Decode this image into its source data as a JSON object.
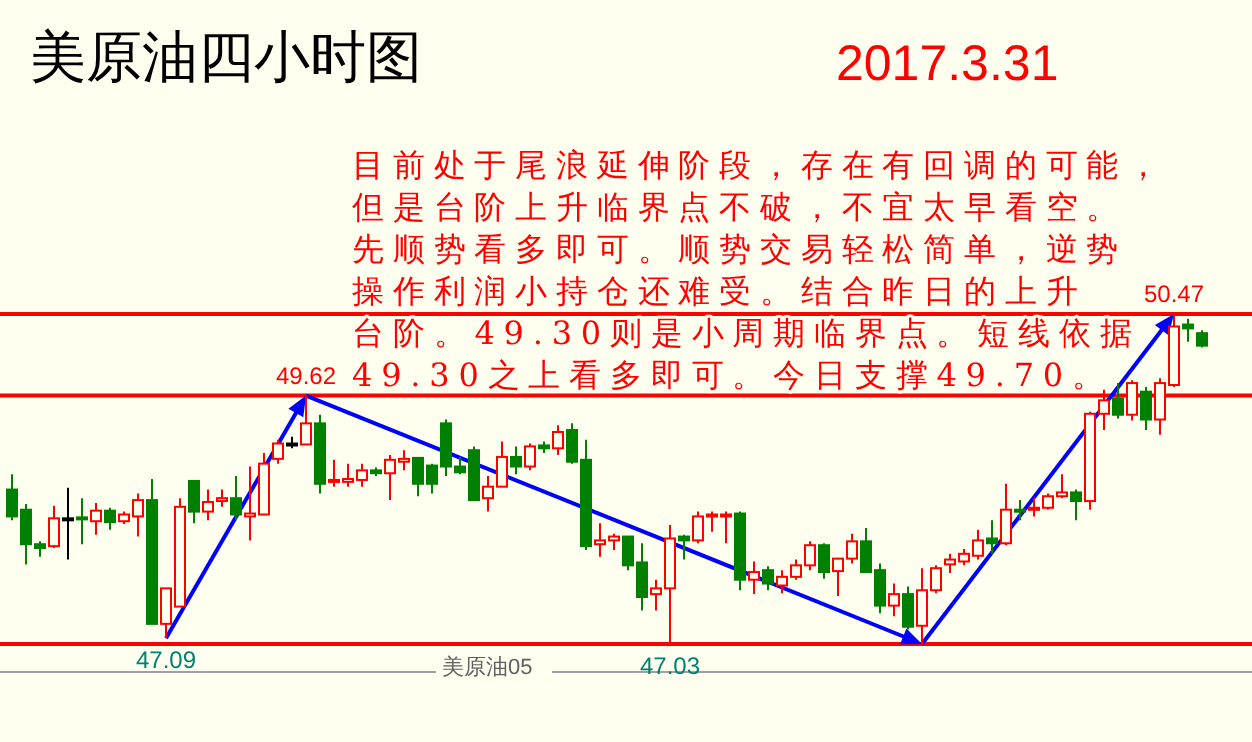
{
  "chart_data": {
    "type": "candlestick",
    "title": "美原油四小时图",
    "subtitle": "2017.3.31",
    "categories": [
      null,
      null,
      null,
      null,
      null,
      null,
      null,
      null,
      null,
      null,
      null,
      null,
      null,
      null,
      null,
      null,
      null,
      null,
      null,
      null,
      null,
      null,
      null,
      null,
      null,
      null,
      null,
      null,
      null,
      null,
      null,
      null,
      null,
      null,
      null,
      null,
      null,
      null,
      null,
      null,
      null,
      null,
      null,
      null,
      null,
      null,
      null,
      null,
      null,
      null,
      null,
      null,
      null,
      null,
      null,
      null,
      null,
      null,
      null,
      null,
      null,
      null,
      null,
      null,
      null,
      null,
      null,
      null,
      null,
      null,
      null,
      null,
      null,
      null,
      null,
      null,
      null,
      null,
      null,
      null,
      null,
      null,
      null,
      null,
      null,
      null
    ],
    "ohlc": [
      [
        48.64,
        48.8,
        48.32,
        48.36
      ],
      [
        48.43,
        48.49,
        47.86,
        48.07
      ],
      [
        48.07,
        48.1,
        47.94,
        48.03
      ],
      [
        48.05,
        48.47,
        48.03,
        48.34
      ],
      [
        48.34,
        48.66,
        47.91,
        48.34
      ],
      [
        48.35,
        48.55,
        48.07,
        48.33
      ],
      [
        48.31,
        48.5,
        48.17,
        48.42
      ],
      [
        48.42,
        48.45,
        48.22,
        48.3
      ],
      [
        48.31,
        48.41,
        48.28,
        48.38
      ],
      [
        48.36,
        48.6,
        48.15,
        48.53
      ],
      [
        48.53,
        48.75,
        47.24,
        47.24
      ],
      [
        47.24,
        47.61,
        47.09,
        47.61
      ],
      [
        47.42,
        48.55,
        47.42,
        48.46
      ],
      [
        48.73,
        48.74,
        48.29,
        48.41
      ],
      [
        48.41,
        48.64,
        48.32,
        48.51
      ],
      [
        48.52,
        48.64,
        48.46,
        48.55
      ],
      [
        48.55,
        48.78,
        48.32,
        48.38
      ],
      [
        48.36,
        48.88,
        48.11,
        48.39
      ],
      [
        48.38,
        49.02,
        48.38,
        48.91
      ],
      [
        48.96,
        49.16,
        48.91,
        49.12
      ],
      [
        49.12,
        49.19,
        49.07,
        49.12
      ],
      [
        49.11,
        49.62,
        49.11,
        49.33
      ],
      [
        49.33,
        49.42,
        48.6,
        48.7
      ],
      [
        48.72,
        48.95,
        48.67,
        48.74
      ],
      [
        48.72,
        48.91,
        48.67,
        48.75
      ],
      [
        48.74,
        48.91,
        48.67,
        48.84
      ],
      [
        48.84,
        48.87,
        48.78,
        48.81
      ],
      [
        48.81,
        49.0,
        48.53,
        48.95
      ],
      [
        48.93,
        49.05,
        48.84,
        48.96
      ],
      [
        48.97,
        48.98,
        48.57,
        48.7
      ],
      [
        48.89,
        48.91,
        48.6,
        48.7
      ],
      [
        49.33,
        49.37,
        48.78,
        48.88
      ],
      [
        48.88,
        48.98,
        48.8,
        48.82
      ],
      [
        49.05,
        49.09,
        48.53,
        48.53
      ],
      [
        48.55,
        48.78,
        48.41,
        48.67
      ],
      [
        48.67,
        49.14,
        48.67,
        48.98
      ],
      [
        48.98,
        49.09,
        48.8,
        48.88
      ],
      [
        48.88,
        49.12,
        48.84,
        49.09
      ],
      [
        49.1,
        49.14,
        49.02,
        49.07
      ],
      [
        49.07,
        49.31,
        49.0,
        49.24
      ],
      [
        49.26,
        49.33,
        48.91,
        48.93
      ],
      [
        48.95,
        49.16,
        48.01,
        48.05
      ],
      [
        48.07,
        48.29,
        47.94,
        48.11
      ],
      [
        48.11,
        48.18,
        48.01,
        48.15
      ],
      [
        48.15,
        48.15,
        47.8,
        47.85
      ],
      [
        47.88,
        48.08,
        47.38,
        47.52
      ],
      [
        47.55,
        47.7,
        47.38,
        47.61
      ],
      [
        47.61,
        48.27,
        47.03,
        48.13
      ],
      [
        48.15,
        48.17,
        47.91,
        48.11
      ],
      [
        48.11,
        48.41,
        48.08,
        48.36
      ],
      [
        48.36,
        48.41,
        48.2,
        48.38
      ],
      [
        48.37,
        48.41,
        48.08,
        48.38
      ],
      [
        48.39,
        48.41,
        47.59,
        47.7
      ],
      [
        47.7,
        47.89,
        47.55,
        47.78
      ],
      [
        47.8,
        47.84,
        47.59,
        47.66
      ],
      [
        47.64,
        47.8,
        47.56,
        47.73
      ],
      [
        47.73,
        47.91,
        47.7,
        47.85
      ],
      [
        47.85,
        48.1,
        47.8,
        48.06
      ],
      [
        48.06,
        48.08,
        47.71,
        47.78
      ],
      [
        47.79,
        47.92,
        47.53,
        47.92
      ],
      [
        47.92,
        48.18,
        47.87,
        48.1
      ],
      [
        48.1,
        48.24,
        47.77,
        47.78
      ],
      [
        47.8,
        47.87,
        47.35,
        47.43
      ],
      [
        47.43,
        47.66,
        47.32,
        47.55
      ],
      [
        47.55,
        47.63,
        47.18,
        47.21
      ],
      [
        47.22,
        47.82,
        47.03,
        47.59
      ],
      [
        47.59,
        47.85,
        47.56,
        47.82
      ],
      [
        47.86,
        47.97,
        47.77,
        47.91
      ],
      [
        47.89,
        48.02,
        47.85,
        47.97
      ],
      [
        47.95,
        48.22,
        47.91,
        48.11
      ],
      [
        48.13,
        48.32,
        47.97,
        48.08
      ],
      [
        48.08,
        48.7,
        48.06,
        48.43
      ],
      [
        48.43,
        48.53,
        48.32,
        48.41
      ],
      [
        48.43,
        48.55,
        48.36,
        48.45
      ],
      [
        48.45,
        48.6,
        48.43,
        48.57
      ],
      [
        48.57,
        48.8,
        48.55,
        48.61
      ],
      [
        48.61,
        48.64,
        48.32,
        48.52
      ],
      [
        48.52,
        49.45,
        48.43,
        49.43
      ],
      [
        49.43,
        49.68,
        49.26,
        49.57
      ],
      [
        49.59,
        49.75,
        49.38,
        49.42
      ],
      [
        49.42,
        49.78,
        49.36,
        49.75
      ],
      [
        49.66,
        49.71,
        49.26,
        49.37
      ],
      [
        49.37,
        49.8,
        49.21,
        49.75
      ],
      [
        49.73,
        50.47,
        49.71,
        50.34
      ],
      [
        50.36,
        50.42,
        50.18,
        50.32
      ],
      [
        50.27,
        50.3,
        50.12,
        50.14
      ]
    ],
    "ref_lines": [
      {
        "axis": "y",
        "value": 50.47,
        "color": "#ff0000"
      },
      {
        "axis": "y",
        "value": 49.62,
        "color": "#ff0000"
      },
      {
        "axis": "y",
        "value": 47.03,
        "color": "#ff0000"
      }
    ],
    "annotations": [
      {
        "text": "47.09",
        "y": 47.09
      },
      {
        "text": "49.62",
        "y": 49.62
      },
      {
        "text": "47.03",
        "y": 47.03
      },
      {
        "text": "50.47",
        "y": 50.47
      },
      "目前处于尾浪延伸阶段，存在有回调的可能，",
      "但是台阶上升临界点不破，不宜太早看空。",
      "先顺势看多即可。顺势交易轻松简单，逆势",
      "操作利润小持仓还难受。结合昨日的上升",
      "台阶。49.30则是小周期临界点。短线依据",
      "49.30之上看多即可。今日支撑49.70。",
      "美原油05"
    ]
  }
}
